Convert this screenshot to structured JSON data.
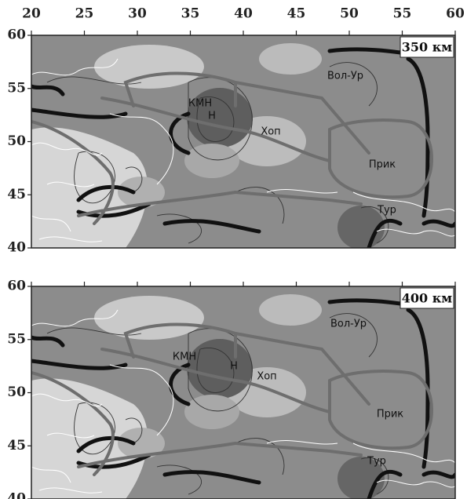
{
  "axes": {
    "x_ticks": [
      20,
      25,
      30,
      35,
      40,
      45,
      50,
      55,
      60
    ],
    "y_ticks": [
      60,
      55,
      50,
      45,
      40
    ]
  },
  "panels": [
    {
      "label": "350 км",
      "regions": [
        "Вол-Ур",
        "КМН",
        "Н",
        "Хоп",
        "Прик",
        "Тур"
      ]
    },
    {
      "label": "400 км",
      "regions": [
        "Вол-Ур",
        "КМН",
        "Н",
        "Хоп",
        "Прик",
        "Тур"
      ]
    }
  ]
}
